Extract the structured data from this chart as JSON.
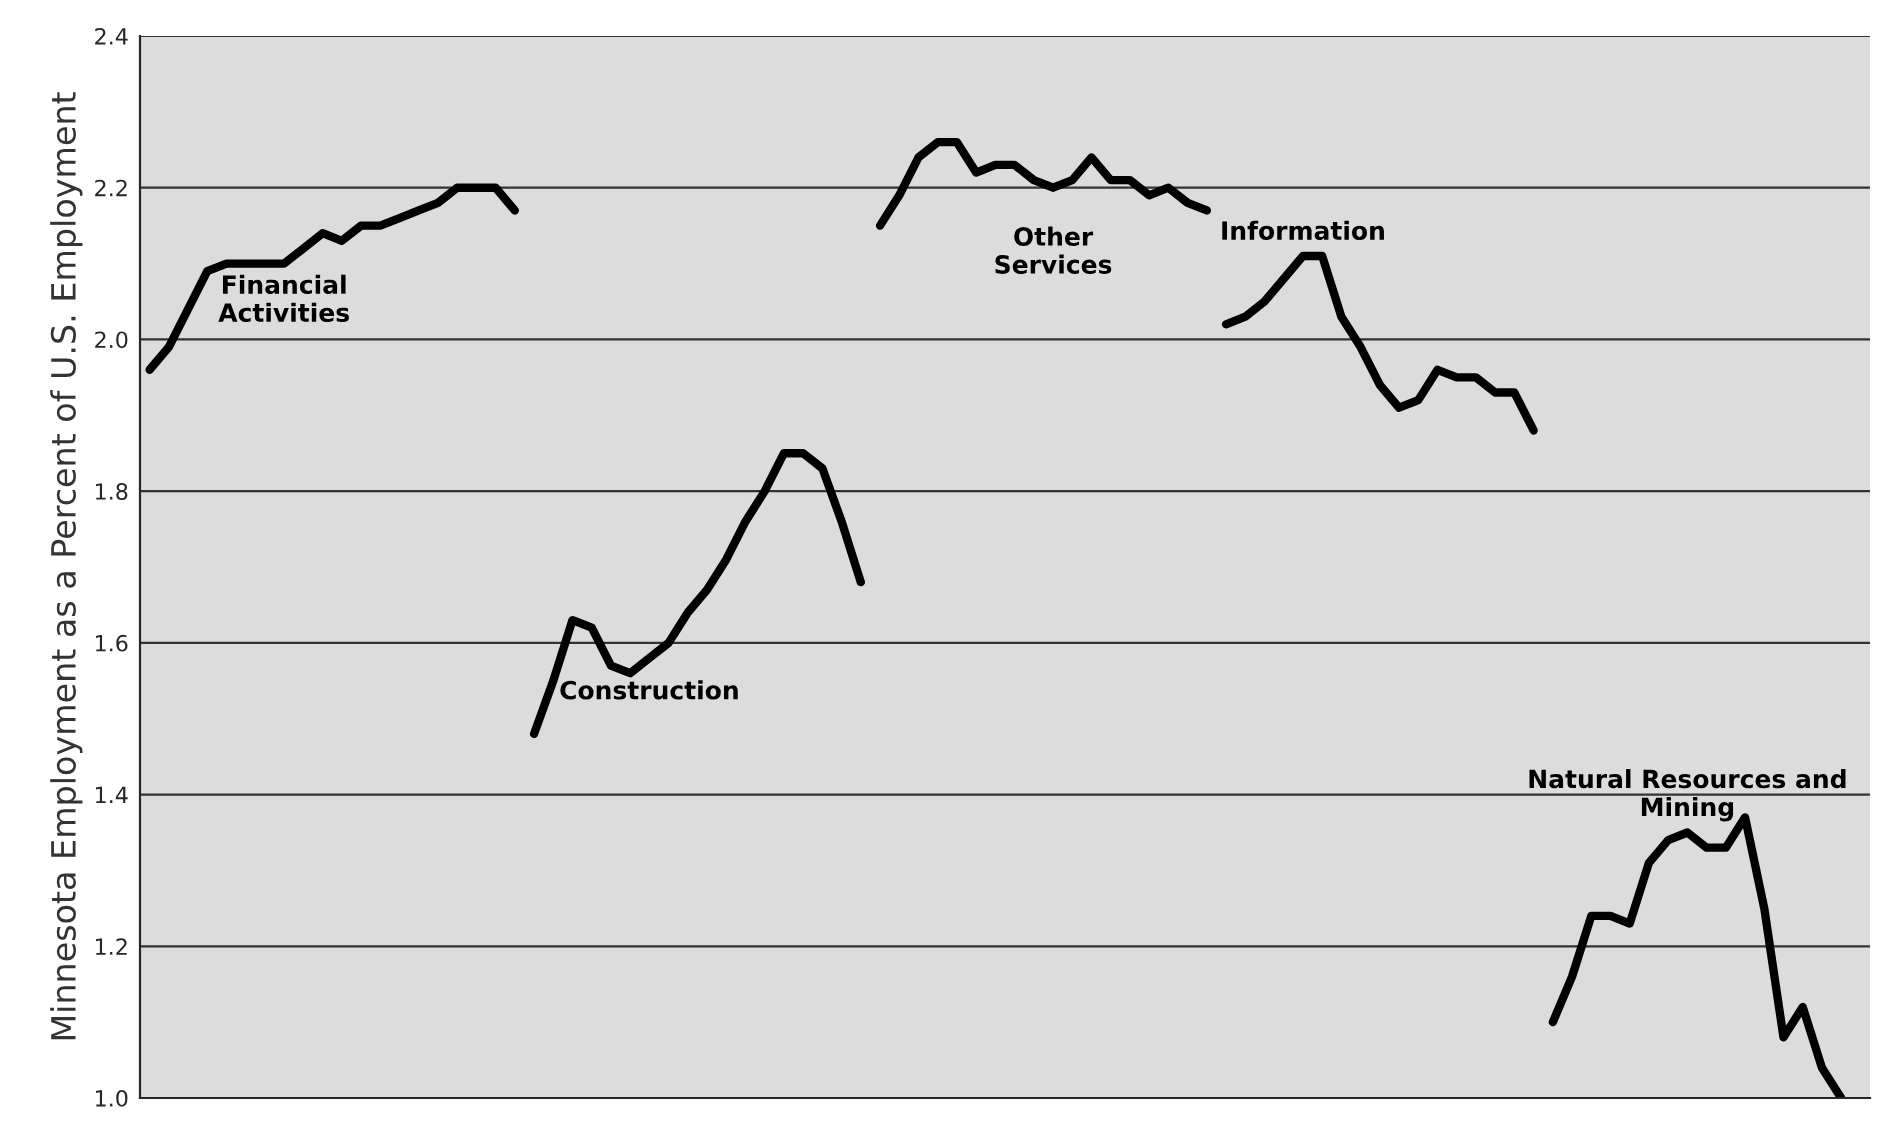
{
  "chart_data": {
    "type": "line",
    "ylabel": "Minnesota Employment as a Percent of U.S. Employment",
    "categories": [
      null,
      null,
      null,
      null,
      null,
      null,
      null,
      null,
      null,
      null,
      null,
      null,
      null,
      null,
      null,
      null,
      null,
      null,
      null,
      null,
      null,
      null,
      null,
      null,
      null,
      null,
      null,
      null,
      null,
      null,
      null,
      null,
      null,
      null,
      null,
      null,
      null,
      null,
      null,
      null,
      null,
      null,
      null,
      null,
      null,
      null,
      null,
      null,
      null,
      null,
      null,
      null,
      null,
      null,
      null,
      null,
      null,
      null,
      null,
      null,
      null,
      null,
      null,
      null,
      null,
      null,
      null,
      null,
      null,
      null,
      null,
      null,
      null,
      null,
      null,
      null,
      null,
      null,
      null,
      null,
      null,
      null,
      null,
      null,
      null,
      null,
      null,
      null,
      null,
      null
    ],
    "series": [
      {
        "name": "Financial Activities",
        "color": "#000000",
        "values": [
          1.96,
          1.99,
          2.04,
          2.09,
          2.1,
          2.1,
          2.1,
          2.1,
          2.12,
          2.14,
          2.13,
          2.15,
          2.15,
          2.16,
          2.17,
          2.18,
          2.2,
          2.2,
          2.2,
          2.17,
          null,
          null,
          null,
          null,
          null,
          null,
          null,
          null,
          null,
          null,
          null,
          null,
          null,
          null,
          null,
          null,
          null,
          null,
          null,
          null,
          null,
          null,
          null,
          null,
          null,
          null,
          null,
          null,
          null,
          null,
          null,
          null,
          null,
          null,
          null,
          null,
          null,
          null,
          null,
          null,
          null,
          null,
          null,
          null,
          null,
          null,
          null,
          null,
          null,
          null,
          null,
          null,
          null,
          null,
          null,
          null,
          null,
          null,
          null,
          null,
          null,
          null,
          null,
          null,
          null,
          null,
          null,
          null,
          null,
          null
        ]
      },
      {
        "name": "Construction",
        "color": "#000000",
        "values": [
          null,
          null,
          null,
          null,
          null,
          null,
          null,
          null,
          null,
          null,
          null,
          null,
          null,
          null,
          null,
          null,
          null,
          null,
          null,
          null,
          1.48,
          1.55,
          1.63,
          1.62,
          1.57,
          1.56,
          1.58,
          1.6,
          1.64,
          1.67,
          1.71,
          1.76,
          1.8,
          1.85,
          1.85,
          1.83,
          1.76,
          1.68,
          null,
          null,
          null,
          null,
          null,
          null,
          null,
          null,
          null,
          null,
          null,
          null,
          null,
          null,
          null,
          null,
          null,
          null,
          null,
          null,
          null,
          null,
          null,
          null,
          null,
          null,
          null,
          null,
          null,
          null,
          null,
          null,
          null,
          null,
          null,
          null,
          null,
          null,
          null,
          null,
          null,
          null,
          null,
          null,
          null,
          null,
          null,
          null,
          null,
          null,
          null,
          null
        ]
      },
      {
        "name": "Other Services",
        "color": "#000000",
        "values": [
          null,
          null,
          null,
          null,
          null,
          null,
          null,
          null,
          null,
          null,
          null,
          null,
          null,
          null,
          null,
          null,
          null,
          null,
          null,
          null,
          null,
          null,
          null,
          null,
          null,
          null,
          null,
          null,
          null,
          null,
          null,
          null,
          null,
          null,
          null,
          null,
          null,
          null,
          2.15,
          2.19,
          2.24,
          2.26,
          2.26,
          2.22,
          2.23,
          2.23,
          2.21,
          2.2,
          2.21,
          2.24,
          2.21,
          2.21,
          2.19,
          2.2,
          2.18,
          2.17,
          null,
          null,
          null,
          null,
          null,
          null,
          null,
          null,
          null,
          null,
          null,
          null,
          null,
          null,
          null,
          null,
          null,
          null,
          null,
          null,
          null,
          null,
          null,
          null,
          null,
          null,
          null,
          null,
          null,
          null,
          null,
          null,
          null,
          null
        ]
      },
      {
        "name": "Information",
        "color": "#000000",
        "values": [
          null,
          null,
          null,
          null,
          null,
          null,
          null,
          null,
          null,
          null,
          null,
          null,
          null,
          null,
          null,
          null,
          null,
          null,
          null,
          null,
          null,
          null,
          null,
          null,
          null,
          null,
          null,
          null,
          null,
          null,
          null,
          null,
          null,
          null,
          null,
          null,
          null,
          null,
          null,
          null,
          null,
          null,
          null,
          null,
          null,
          null,
          null,
          null,
          null,
          null,
          null,
          null,
          null,
          null,
          null,
          null,
          2.02,
          2.03,
          2.05,
          2.08,
          2.11,
          2.11,
          2.03,
          1.99,
          1.94,
          1.91,
          1.92,
          1.96,
          1.95,
          1.95,
          1.93,
          1.93,
          1.88,
          null,
          null,
          null,
          null,
          null,
          null,
          null,
          null,
          null,
          null,
          null,
          null,
          null,
          null,
          null,
          null,
          null
        ]
      },
      {
        "name": "Natural Resources and Mining",
        "color": "#000000",
        "values": [
          null,
          null,
          null,
          null,
          null,
          null,
          null,
          null,
          null,
          null,
          null,
          null,
          null,
          null,
          null,
          null,
          null,
          null,
          null,
          null,
          null,
          null,
          null,
          null,
          null,
          null,
          null,
          null,
          null,
          null,
          null,
          null,
          null,
          null,
          null,
          null,
          null,
          null,
          null,
          null,
          null,
          null,
          null,
          null,
          null,
          null,
          null,
          null,
          null,
          null,
          null,
          null,
          null,
          null,
          null,
          null,
          null,
          null,
          null,
          null,
          null,
          null,
          null,
          null,
          null,
          null,
          null,
          null,
          null,
          null,
          null,
          null,
          null,
          1.1,
          1.16,
          1.24,
          1.24,
          1.23,
          1.31,
          1.34,
          1.35,
          1.33,
          1.33,
          1.37,
          1.25,
          1.08,
          1.12,
          1.04,
          1.0,
          null
        ]
      }
    ],
    "ylim": [
      1.0,
      2.4
    ],
    "yticks": [
      {
        "value": 1.0,
        "label": "1.0"
      },
      {
        "value": 1.2,
        "label": "1.2"
      },
      {
        "value": 1.4,
        "label": "1.4"
      },
      {
        "value": 1.6,
        "label": "1.6"
      },
      {
        "value": 1.8,
        "label": "1.8"
      },
      {
        "value": 2.0,
        "label": "2.0"
      },
      {
        "value": 2.2,
        "label": "2.2"
      },
      {
        "value": 2.4,
        "label": "2.4"
      }
    ],
    "grid": "y",
    "tick_labels": "y",
    "line_style": "solid"
  }
}
